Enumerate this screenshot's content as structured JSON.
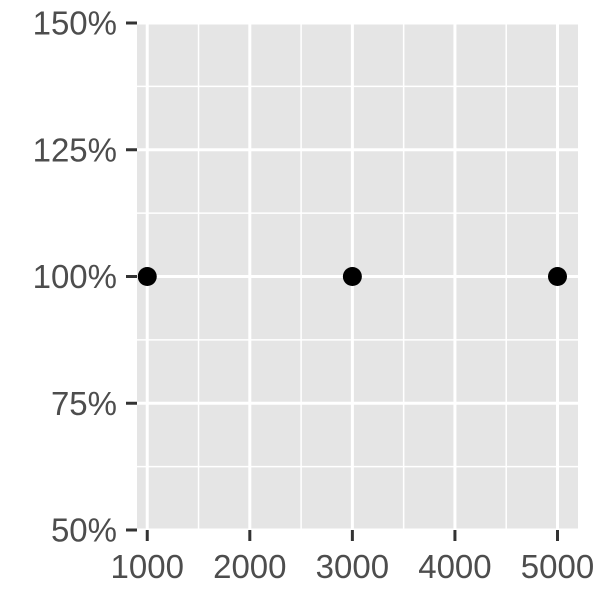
{
  "chart_data": {
    "type": "scatter",
    "title": "",
    "xlabel": "",
    "ylabel": "",
    "x": [
      1000,
      3000,
      5000
    ],
    "y": [
      1.0,
      1.0,
      1.0
    ],
    "xlim": [
      900,
      5200
    ],
    "ylim": [
      0.5,
      1.5
    ],
    "x_ticks": [
      1000,
      2000,
      3000,
      4000,
      5000
    ],
    "x_tick_labels": [
      "1000",
      "2000",
      "3000",
      "4000",
      "5000"
    ],
    "y_ticks": [
      0.5,
      0.75,
      1.0,
      1.25,
      1.5
    ],
    "y_tick_labels": [
      "50%",
      "75%",
      "100%",
      "125%",
      "150%"
    ],
    "grid": true,
    "colors": {
      "panel_background": "#e5e5e5",
      "grid_line": "#ffffff",
      "point": "#000000",
      "axis_tick": "#333333",
      "tick_label": "#4d4d4d"
    }
  }
}
